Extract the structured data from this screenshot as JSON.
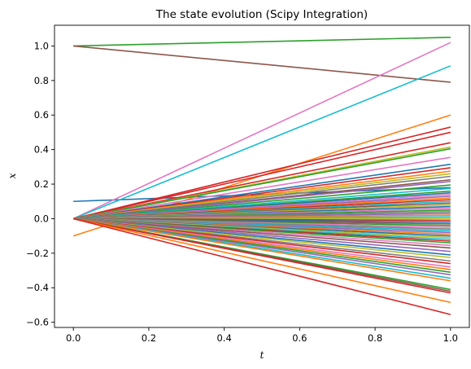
{
  "chart_data": {
    "type": "line",
    "title": "The state evolution (Scipy Integration)",
    "xlabel": "t",
    "ylabel": "x",
    "xlim": [
      -0.05,
      1.05
    ],
    "ylim": [
      -0.63,
      1.12
    ],
    "xticks": [
      0.0,
      0.2,
      0.4,
      0.6,
      0.8,
      1.0
    ],
    "xtick_labels": [
      "0.0",
      "0.2",
      "0.4",
      "0.6",
      "0.8",
      "1.0"
    ],
    "yticks": [
      -0.6,
      -0.4,
      -0.2,
      0.0,
      0.2,
      0.4,
      0.6,
      0.8,
      1.0
    ],
    "ytick_labels": [
      "−0.6",
      "−0.4",
      "−0.2",
      "0.0",
      "0.2",
      "0.4",
      "0.6",
      "0.8",
      "1.0"
    ],
    "grid": false,
    "legend": "none",
    "palette": [
      "#1f77b4",
      "#ff7f0e",
      "#2ca02c",
      "#d62728",
      "#9467bd",
      "#8c564b",
      "#e377c2",
      "#7f7f7f",
      "#bcbd22",
      "#17becf"
    ],
    "x": [
      0.0,
      1.0
    ],
    "series": [
      {
        "values": [
          0.1,
          0.18
        ],
        "color": "#1f77b4"
      },
      {
        "values": [
          -0.1,
          0.6
        ],
        "color": "#ff7f0e"
      },
      {
        "values": [
          1.0,
          1.05
        ],
        "color": "#2ca02c"
      },
      {
        "values": [
          1.0,
          0.79
        ],
        "color": "#8c564b"
      },
      {
        "values": [
          0.0,
          1.02
        ],
        "color": "#e377c2"
      },
      {
        "values": [
          0.0,
          0.885
        ],
        "color": "#17becf"
      },
      {
        "values": [
          0.0,
          0.53
        ],
        "color": "#d62728"
      },
      {
        "values": [
          0.0,
          0.5
        ],
        "color": "#d62728"
      },
      {
        "values": [
          0.0,
          0.44
        ],
        "color": "#d62728"
      },
      {
        "values": [
          0.0,
          0.415
        ],
        "color": "#bcbd22"
      },
      {
        "values": [
          0.0,
          0.405
        ],
        "color": "#2ca02c"
      },
      {
        "values": [
          0.0,
          0.355
        ],
        "color": "#e377c2"
      },
      {
        "values": [
          0.0,
          0.315
        ],
        "color": "#1f77b4"
      },
      {
        "values": [
          0.0,
          0.295
        ],
        "color": "#d62728"
      },
      {
        "values": [
          0.0,
          0.275
        ],
        "color": "#ff7f0e"
      },
      {
        "values": [
          0.0,
          0.26
        ],
        "color": "#bcbd22"
      },
      {
        "values": [
          0.0,
          0.245
        ],
        "color": "#7f7f7f"
      },
      {
        "values": [
          0.0,
          0.225
        ],
        "color": "#8c564b"
      },
      {
        "values": [
          0.0,
          0.215
        ],
        "color": "#9467bd"
      },
      {
        "values": [
          0.0,
          0.195
        ],
        "color": "#2ca02c"
      },
      {
        "values": [
          0.0,
          0.175
        ],
        "color": "#17becf"
      },
      {
        "values": [
          0.0,
          0.16
        ],
        "color": "#2ca02c"
      },
      {
        "values": [
          0.0,
          0.15
        ],
        "color": "#1f77b4"
      },
      {
        "values": [
          0.0,
          0.14
        ],
        "color": "#e377c2"
      },
      {
        "values": [
          0.0,
          0.13
        ],
        "color": "#9467bd"
      },
      {
        "values": [
          0.0,
          0.12
        ],
        "color": "#ff7f0e"
      },
      {
        "values": [
          0.0,
          0.11
        ],
        "color": "#d62728"
      },
      {
        "values": [
          0.0,
          0.1
        ],
        "color": "#17becf"
      },
      {
        "values": [
          0.0,
          0.09
        ],
        "color": "#8c564b"
      },
      {
        "values": [
          0.0,
          0.08
        ],
        "color": "#bcbd22"
      },
      {
        "values": [
          0.0,
          0.07
        ],
        "color": "#1f77b4"
      },
      {
        "values": [
          0.0,
          0.06
        ],
        "color": "#e377c2"
      },
      {
        "values": [
          0.0,
          0.05
        ],
        "color": "#2ca02c"
      },
      {
        "values": [
          0.0,
          0.04
        ],
        "color": "#7f7f7f"
      },
      {
        "values": [
          0.0,
          0.03
        ],
        "color": "#9467bd"
      },
      {
        "values": [
          0.0,
          0.02
        ],
        "color": "#ff7f0e"
      },
      {
        "values": [
          0.0,
          0.01
        ],
        "color": "#17becf"
      },
      {
        "values": [
          0.0,
          0.0
        ],
        "color": "#bcbd22"
      },
      {
        "values": [
          0.0,
          -0.01
        ],
        "color": "#d62728"
      },
      {
        "values": [
          0.0,
          -0.02
        ],
        "color": "#1f77b4"
      },
      {
        "values": [
          0.0,
          -0.03
        ],
        "color": "#8c564b"
      },
      {
        "values": [
          0.0,
          -0.04
        ],
        "color": "#2ca02c"
      },
      {
        "values": [
          0.0,
          -0.05
        ],
        "color": "#e377c2"
      },
      {
        "values": [
          0.0,
          -0.06
        ],
        "color": "#7f7f7f"
      },
      {
        "values": [
          0.0,
          -0.07
        ],
        "color": "#17becf"
      },
      {
        "values": [
          0.0,
          -0.08
        ],
        "color": "#9467bd"
      },
      {
        "values": [
          0.0,
          -0.09
        ],
        "color": "#ff7f0e"
      },
      {
        "values": [
          0.0,
          -0.1
        ],
        "color": "#1f77b4"
      },
      {
        "values": [
          0.0,
          -0.11
        ],
        "color": "#bcbd22"
      },
      {
        "values": [
          0.0,
          -0.12
        ],
        "color": "#17becf"
      },
      {
        "values": [
          0.0,
          -0.13
        ],
        "color": "#d62728"
      },
      {
        "values": [
          0.0,
          -0.14
        ],
        "color": "#2ca02c"
      },
      {
        "values": [
          0.0,
          -0.155
        ],
        "color": "#e377c2"
      },
      {
        "values": [
          0.0,
          -0.17
        ],
        "color": "#8c564b"
      },
      {
        "values": [
          0.0,
          -0.19
        ],
        "color": "#9467bd"
      },
      {
        "values": [
          0.0,
          -0.21
        ],
        "color": "#1f77b4"
      },
      {
        "values": [
          0.0,
          -0.225
        ],
        "color": "#bcbd22"
      },
      {
        "values": [
          0.0,
          -0.245
        ],
        "color": "#7f7f7f"
      },
      {
        "values": [
          0.0,
          -0.26
        ],
        "color": "#d62728"
      },
      {
        "values": [
          0.0,
          -0.28
        ],
        "color": "#e377c2"
      },
      {
        "values": [
          0.0,
          -0.295
        ],
        "color": "#ff7f0e"
      },
      {
        "values": [
          0.0,
          -0.31
        ],
        "color": "#2ca02c"
      },
      {
        "values": [
          0.0,
          -0.325
        ],
        "color": "#9467bd"
      },
      {
        "values": [
          0.0,
          -0.345
        ],
        "color": "#17becf"
      },
      {
        "values": [
          0.0,
          -0.36
        ],
        "color": "#ff7f0e"
      },
      {
        "values": [
          0.0,
          -0.41
        ],
        "color": "#2ca02c"
      },
      {
        "values": [
          0.0,
          -0.42
        ],
        "color": "#8c564b"
      },
      {
        "values": [
          0.0,
          -0.43
        ],
        "color": "#d62728"
      },
      {
        "values": [
          0.0,
          -0.485
        ],
        "color": "#ff7f0e"
      },
      {
        "values": [
          0.0,
          -0.555
        ],
        "color": "#d62728"
      }
    ]
  }
}
